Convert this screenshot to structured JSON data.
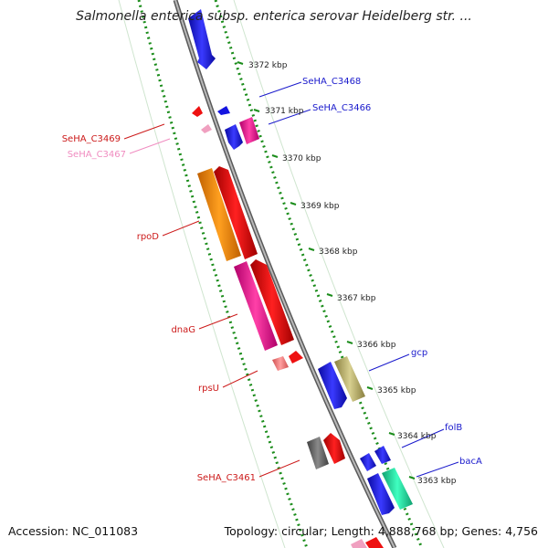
{
  "title": "Salmonella enterica subsp. enterica serovar Heidelberg str. ...",
  "footer": {
    "accession": "Accession: NC_011083",
    "summary": "Topology: circular; Length: 4,888,768 bp; Genes: 4,756"
  },
  "ticks": [
    "3372 kbp",
    "3371 kbp",
    "3370 kbp",
    "3369 kbp",
    "3368 kbp",
    "3367 kbp",
    "3366 kbp",
    "3365 kbp",
    "3364 kbp",
    "3363 kbp"
  ],
  "gene_labels": [
    {
      "text": "SeHA_C3468",
      "color": "#1a1acc"
    },
    {
      "text": "SeHA_C3466",
      "color": "#1a1acc"
    },
    {
      "text": "SeHA_C3469",
      "color": "#cc1a1a"
    },
    {
      "text": "SeHA_C3467",
      "color": "#f08cc0"
    },
    {
      "text": "rpoD",
      "color": "#cc1a1a"
    },
    {
      "text": "dnaG",
      "color": "#cc1a1a"
    },
    {
      "text": "rpsU",
      "color": "#cc1a1a"
    },
    {
      "text": "gcp",
      "color": "#1a1acc"
    },
    {
      "text": "folB",
      "color": "#1a1acc"
    },
    {
      "text": "bacA",
      "color": "#1a1acc"
    },
    {
      "text": "SeHA_C3461",
      "color": "#cc1a1a"
    }
  ],
  "colors": {
    "backbone": "#8c8c8c",
    "ruler": "#1a8c1a",
    "blue_gene": "#1414e0",
    "red_gene": "#ee1111",
    "orange_gene": "#ff8c00",
    "magenta_gene": "#ff1493",
    "khaki_gene": "#b8b070",
    "aqua_gene": "#20e0a0",
    "gray_gene": "#707070",
    "pink_gene": "#f0a0c0"
  }
}
